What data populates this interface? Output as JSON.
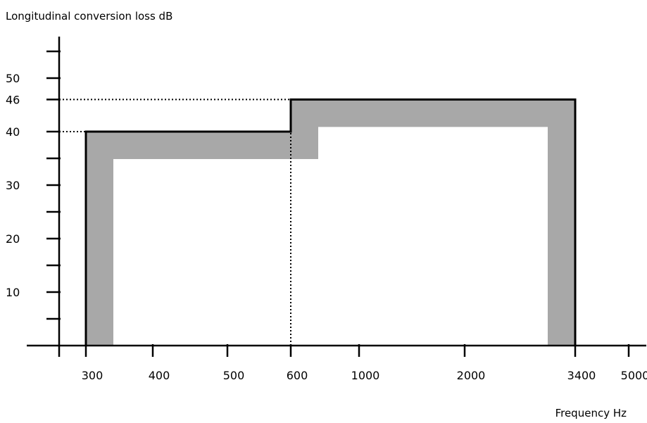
{
  "chart_data": {
    "type": "line",
    "title": "",
    "ylabel": "Longitudinal conversion loss dB",
    "xlabel": "Frequency Hz",
    "x_ticks": [
      "300",
      "400",
      "500",
      "600",
      "1000",
      "2000",
      "3400",
      "5000"
    ],
    "y_ticks": [
      "10",
      "20",
      "30",
      "40",
      "46",
      "50"
    ],
    "y_minor_ticks": [
      5,
      15,
      25,
      35,
      55
    ],
    "ylim": [
      0,
      55
    ],
    "grid": false,
    "mask_limit": {
      "name": "",
      "points": [
        {
          "x": "300",
          "y": 0
        },
        {
          "x": "300",
          "y": 40
        },
        {
          "x": "600",
          "y": 40
        },
        {
          "x": "600",
          "y": 46
        },
        {
          "x": "3400",
          "y": 46
        },
        {
          "x": "3400",
          "y": 0
        }
      ]
    },
    "reference_lines": [
      {
        "from_x": "axis",
        "to_x": "300",
        "y": 40
      },
      {
        "from_x": "axis",
        "to_x": "600",
        "y": 46
      },
      {
        "x": "600",
        "from_y": 0,
        "to_y": 40
      }
    ],
    "colors": {
      "line": "#000000",
      "band": "#a8a8a8",
      "background": "#ffffff"
    }
  }
}
